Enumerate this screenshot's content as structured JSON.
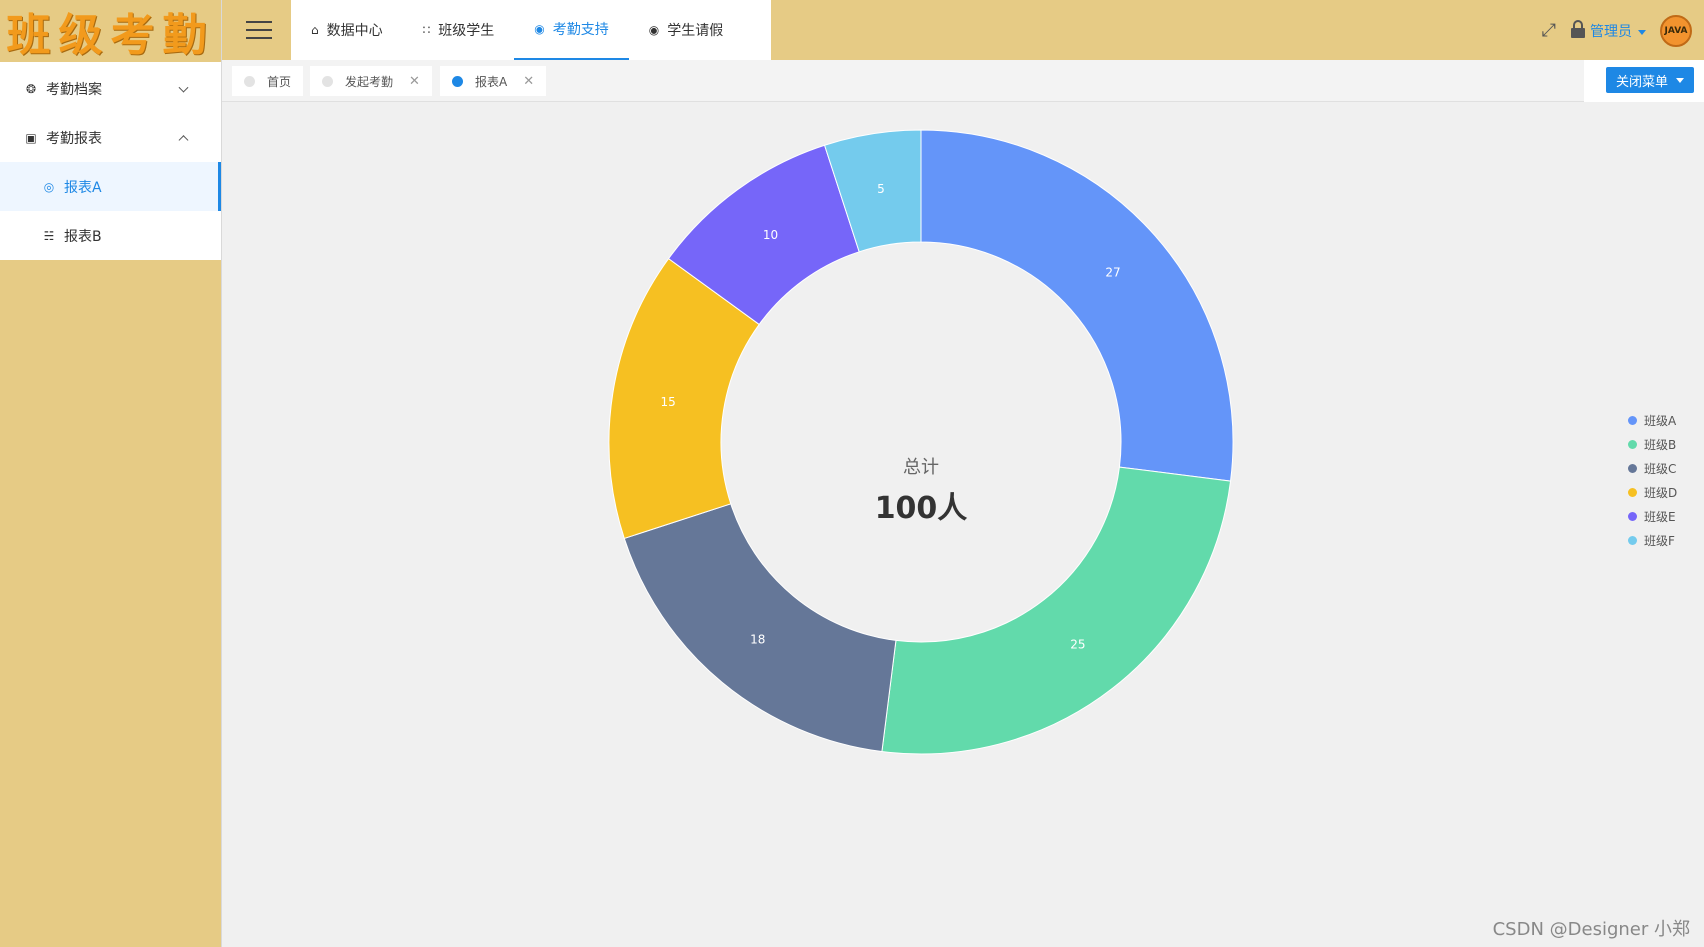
{
  "app": {
    "logo_text": "班级考勤"
  },
  "sidebar": {
    "items": [
      {
        "label": "考勤档案",
        "icon": "dashboard-icon",
        "expanded": false
      },
      {
        "label": "考勤报表",
        "icon": "report-box-icon",
        "expanded": true
      }
    ],
    "sub_items": [
      {
        "label": "报表A",
        "icon": "globe-icon",
        "active": true
      },
      {
        "label": "报表B",
        "icon": "basket-icon",
        "active": false
      }
    ]
  },
  "header": {
    "tabs": [
      {
        "label": "数据中心",
        "icon": "home-icon",
        "active": false
      },
      {
        "label": "班级学生",
        "icon": "grid-icon",
        "active": false
      },
      {
        "label": "考勤支持",
        "icon": "support-icon",
        "active": true
      },
      {
        "label": "学生请假",
        "icon": "help-icon",
        "active": false
      }
    ],
    "user_label": "管理员",
    "avatar_text": "JAVA"
  },
  "page_tabs": [
    {
      "label": "首页",
      "closable": false,
      "active": false
    },
    {
      "label": "发起考勤",
      "closable": true,
      "active": false
    },
    {
      "label": "报表A",
      "closable": true,
      "active": true
    }
  ],
  "close_menu_label": "关闭菜单",
  "chart_center": {
    "subtitle": "总计",
    "total": "100人"
  },
  "chart_data": {
    "type": "pie",
    "donut": true,
    "categories": [
      "班级A",
      "班级B",
      "班级C",
      "班级D",
      "班级E",
      "班级F"
    ],
    "values": [
      27,
      25,
      18,
      15,
      10,
      5
    ],
    "colors": [
      "#6495f9",
      "#62daab",
      "#657798",
      "#f6c022",
      "#7666f9",
      "#74cbed"
    ],
    "legend": "right",
    "start_angle": "top"
  },
  "watermark": "CSDN @Designer 小郑"
}
